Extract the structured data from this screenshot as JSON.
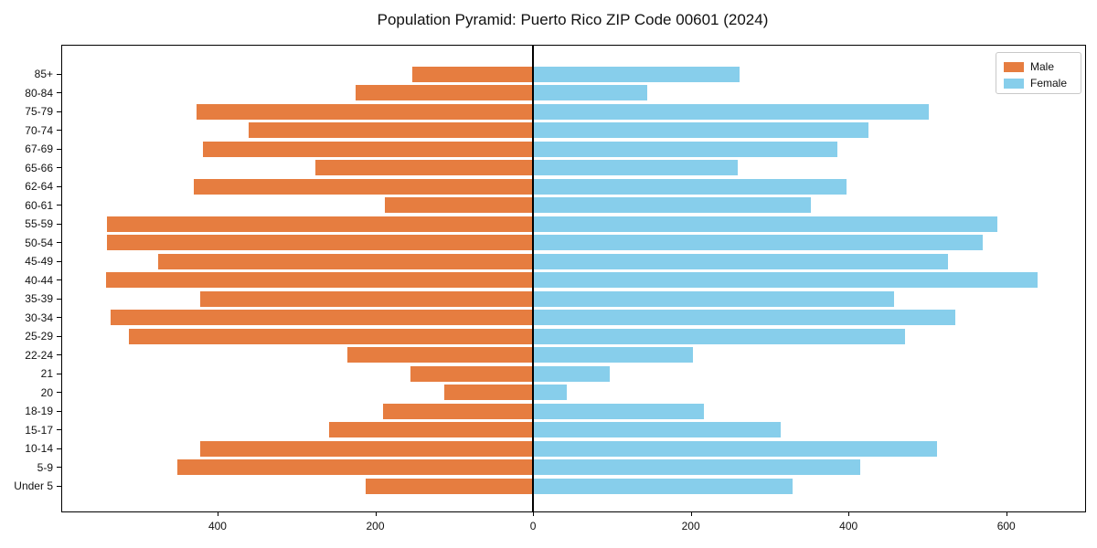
{
  "title": "Population Pyramid: Puerto Rico ZIP Code 00601 (2024)",
  "legend": {
    "male_label": "Male",
    "female_label": "Female"
  },
  "colors": {
    "male": "#e67d40",
    "female": "#87ceeb",
    "axis": "#000000"
  },
  "chart_data": {
    "type": "bar",
    "subtype": "population-pyramid",
    "title": "Population Pyramid: Puerto Rico ZIP Code 00601 (2024)",
    "xlabel": "",
    "ylabel": "",
    "grid": false,
    "legend_position": "upper right",
    "categories": [
      "85+",
      "80-84",
      "75-79",
      "70-74",
      "67-69",
      "65-66",
      "62-64",
      "60-61",
      "55-59",
      "50-54",
      "45-49",
      "40-44",
      "35-39",
      "30-34",
      "25-29",
      "22-24",
      "21",
      "20",
      "18-19",
      "15-17",
      "10-14",
      "5-9",
      "Under 5"
    ],
    "series": [
      {
        "name": "Male",
        "side": "left",
        "color": "#e67d40",
        "values": [
          153,
          225,
          427,
          361,
          418,
          276,
          430,
          188,
          540,
          540,
          475,
          541,
          422,
          536,
          512,
          235,
          155,
          113,
          190,
          259,
          422,
          451,
          212
        ]
      },
      {
        "name": "Female",
        "side": "right",
        "color": "#87ceeb",
        "values": [
          262,
          145,
          502,
          425,
          386,
          260,
          398,
          352,
          589,
          570,
          526,
          640,
          458,
          535,
          472,
          203,
          97,
          43,
          217,
          314,
          512,
          415,
          329
        ]
      }
    ],
    "x_ticks": [
      {
        "value": -400,
        "label": "400"
      },
      {
        "value": -200,
        "label": "200"
      },
      {
        "value": 0,
        "label": "0"
      },
      {
        "value": 200,
        "label": "200"
      },
      {
        "value": 400,
        "label": "400"
      },
      {
        "value": 600,
        "label": "600"
      }
    ],
    "xlim": [
      -597,
      700
    ]
  }
}
